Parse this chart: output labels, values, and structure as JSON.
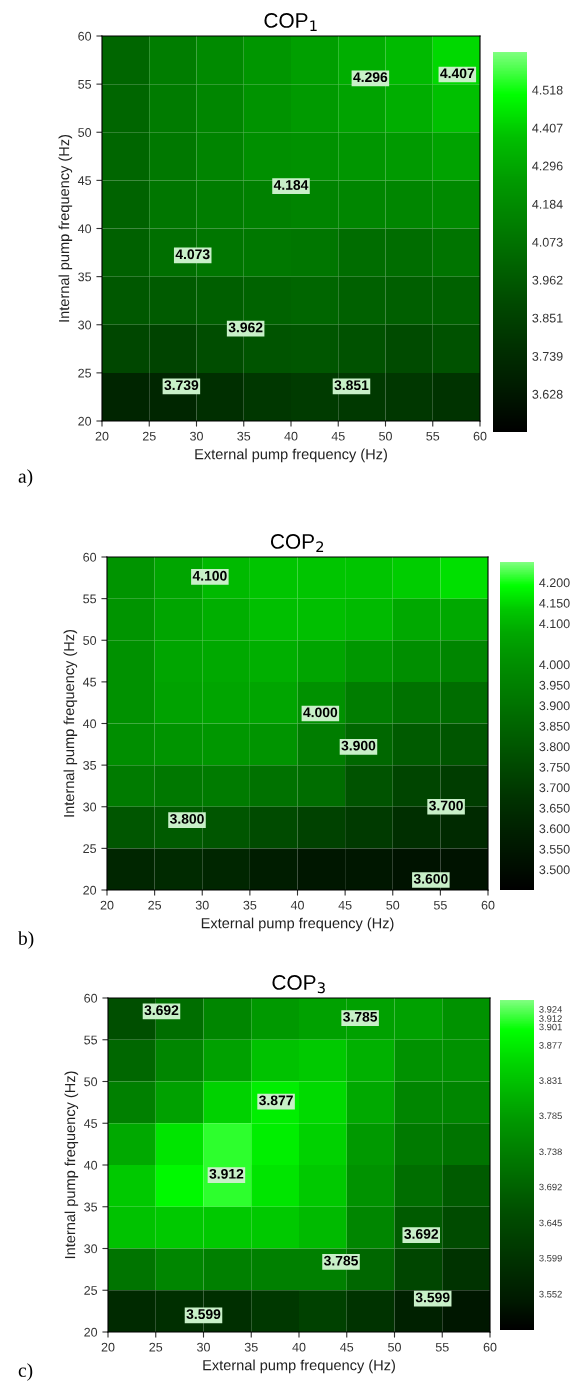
{
  "chart_data": [
    {
      "type": "heatmap",
      "title": "COP$_{1}$",
      "xlabel": "External pump frequency (Hz)",
      "ylabel": "Internal pump frequency (Hz)",
      "xlim": [
        20,
        60
      ],
      "ylim": [
        20,
        60
      ],
      "xticks": [
        20,
        25,
        30,
        35,
        40,
        45,
        50,
        55,
        60
      ],
      "yticks": [
        20,
        25,
        30,
        35,
        40,
        45,
        50,
        55,
        60
      ],
      "cells": [
        [
          4.02,
          4.12,
          4.18,
          4.23,
          4.27,
          4.32,
          4.36,
          4.43
        ],
        [
          4.02,
          4.11,
          4.16,
          4.22,
          4.25,
          4.28,
          4.32,
          4.38
        ],
        [
          4.02,
          4.1,
          4.15,
          4.2,
          4.21,
          4.23,
          4.25,
          4.28
        ],
        [
          4.01,
          4.09,
          4.12,
          4.14,
          4.15,
          4.16,
          4.16,
          4.18
        ],
        [
          4.0,
          4.06,
          4.09,
          4.1,
          4.09,
          4.05,
          4.05,
          4.08
        ],
        [
          3.96,
          3.97,
          3.99,
          4.01,
          4.02,
          4.0,
          3.99,
          4.0
        ],
        [
          3.88,
          3.87,
          3.91,
          3.94,
          3.95,
          3.93,
          3.9,
          3.93
        ],
        [
          3.7,
          3.71,
          3.76,
          3.8,
          3.82,
          3.81,
          3.8,
          3.78
        ]
      ],
      "clim": [
        3.517,
        4.629
      ],
      "cticks": [
        3.628,
        3.739,
        3.851,
        3.962,
        4.073,
        4.184,
        4.296,
        4.407,
        4.518
      ],
      "colors": [
        "#000000",
        "#001a00",
        "#003000",
        "#004800",
        "#006400",
        "#008000",
        "#009c00",
        "#00c000",
        "#00ff00",
        "#80ff80"
      ],
      "annotations": [
        "4.296",
        "4.407",
        "4.184",
        "4.073",
        "3.962",
        "3.739",
        "3.851",
        "a)"
      ]
    },
    {
      "type": "heatmap",
      "title": "COP$_{2}$",
      "xlabel": "External pump frequency (Hz)",
      "ylabel": "Internal pump frequency (Hz)",
      "xlim": [
        20,
        60
      ],
      "ylim": [
        20,
        60
      ],
      "xticks": [
        20,
        25,
        30,
        35,
        40,
        45,
        50,
        55,
        60
      ],
      "yticks": [
        20,
        25,
        30,
        35,
        40,
        45,
        50,
        55,
        60
      ],
      "cells": [
        [
          4.02,
          4.07,
          4.11,
          4.13,
          4.13,
          4.13,
          4.14,
          4.16
        ],
        [
          4.02,
          4.07,
          4.09,
          4.12,
          4.12,
          4.11,
          4.08,
          4.08
        ],
        [
          4.01,
          4.07,
          4.08,
          4.09,
          4.07,
          4.03,
          4.0,
          3.97
        ],
        [
          4.01,
          4.06,
          4.07,
          4.07,
          4.01,
          3.94,
          3.9,
          3.88
        ],
        [
          4.0,
          4.02,
          4.03,
          4.02,
          3.94,
          3.86,
          3.82,
          3.8
        ],
        [
          3.93,
          3.92,
          3.93,
          3.9,
          3.88,
          3.79,
          3.74,
          3.71
        ],
        [
          3.8,
          3.82,
          3.8,
          3.76,
          3.73,
          3.7,
          3.66,
          3.64
        ],
        [
          3.62,
          3.64,
          3.62,
          3.58,
          3.55,
          3.55,
          3.53,
          3.53
        ]
      ],
      "clim": [
        3.45,
        4.25
      ],
      "cticks": [
        {
          "value": 3.5,
          "label": "3.500"
        },
        {
          "value": 3.55,
          "label": "3.550"
        },
        {
          "value": 3.6,
          "label": "3.600"
        },
        {
          "value": 3.65,
          "label": "3.650"
        },
        {
          "value": 3.7,
          "label": "3.700"
        },
        {
          "value": 3.75,
          "label": "3.750"
        },
        {
          "value": 3.8,
          "label": "3.800"
        },
        {
          "value": 3.85,
          "label": "3.850"
        },
        {
          "value": 3.9,
          "label": "3.900"
        },
        {
          "value": 3.95,
          "label": "3.950"
        },
        {
          "value": 4.0,
          "label": "4.000"
        },
        {
          "value": 4.1,
          "label": "4.100"
        },
        {
          "value": 4.15,
          "label": "4.150"
        },
        {
          "value": 4.2,
          "label": "4.200"
        }
      ],
      "colors": [
        "#000000",
        "#000e00",
        "#001a00",
        "#002600",
        "#003400",
        "#004400",
        "#005400",
        "#006400",
        "#007400",
        "#008400",
        "#009400",
        "#00a800",
        "#00c800",
        "#00ff00",
        "#80ff80"
      ],
      "annotations": [
        "4.100",
        "4.000",
        "3.900",
        "3.800",
        "3.700",
        "3.600",
        "b)"
      ]
    },
    {
      "type": "heatmap",
      "title": "COP$_{3}$",
      "xlabel": "External pump frequency (Hz)",
      "ylabel": "Internal pump frequency (Hz)",
      "xlim": [
        20,
        60
      ],
      "ylim": [
        20,
        60
      ],
      "xticks": [
        20,
        25,
        30,
        35,
        40,
        45,
        50,
        55,
        60
      ],
      "yticks": [
        20,
        25,
        30,
        35,
        40,
        45,
        50,
        55,
        60
      ],
      "cells": [
        [
          3.66,
          3.71,
          3.75,
          3.78,
          3.79,
          3.79,
          3.79,
          3.77
        ],
        [
          3.7,
          3.75,
          3.79,
          3.83,
          3.84,
          3.81,
          3.77,
          3.77
        ],
        [
          3.74,
          3.79,
          3.85,
          3.88,
          3.86,
          3.8,
          3.75,
          3.75
        ],
        [
          3.8,
          3.87,
          3.91,
          3.88,
          3.85,
          3.78,
          3.73,
          3.72
        ],
        [
          3.84,
          3.89,
          3.91,
          3.87,
          3.84,
          3.77,
          3.71,
          3.68
        ],
        [
          3.83,
          3.84,
          3.84,
          3.84,
          3.82,
          3.75,
          3.68,
          3.65
        ],
        [
          3.72,
          3.75,
          3.74,
          3.74,
          3.74,
          3.7,
          3.64,
          3.6
        ],
        [
          3.58,
          3.59,
          3.59,
          3.61,
          3.63,
          3.6,
          3.56,
          3.54
        ]
      ],
      "clim": [
        3.505,
        3.936
      ],
      "cticks": [
        3.552,
        3.599,
        3.645,
        3.692,
        3.738,
        3.785,
        3.831,
        3.877,
        3.901,
        3.912,
        3.924
      ],
      "colors": [
        "#000000",
        "#001a00",
        "#002c00",
        "#003e00",
        "#005000",
        "#006800",
        "#008000",
        "#009800",
        "#00b800",
        "#00d800",
        "#00ff00",
        "#80ff80"
      ],
      "annotations": [
        "3.692",
        "3.785",
        "3.877",
        "3.912",
        "3.692",
        "3.785",
        "3.599",
        "3.599",
        "c)"
      ]
    }
  ]
}
